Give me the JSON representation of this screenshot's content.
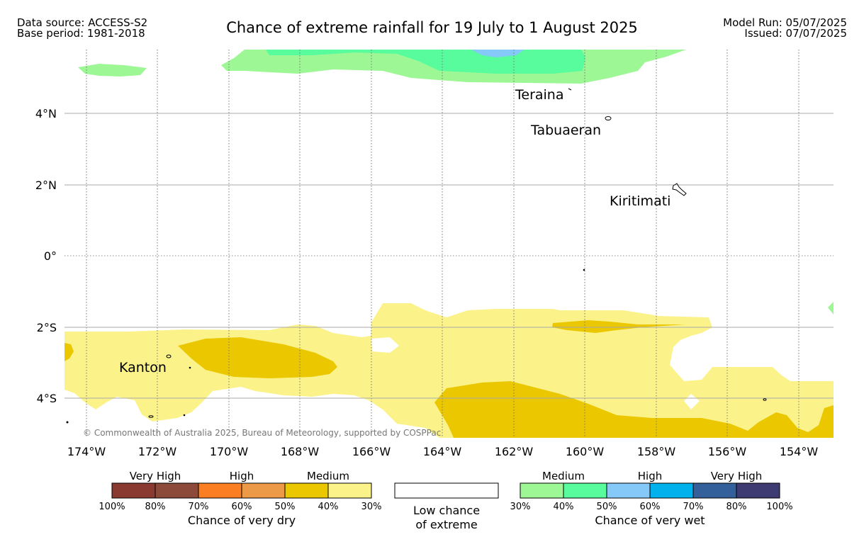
{
  "header": {
    "source_line": "Data source: ACCESS-S2",
    "base_line": "Base period: 1981-2018",
    "title": "Chance of extreme rainfall for 19 July to 1 August 2025",
    "model_run": "Model Run: 05/07/2025",
    "issued": "Issued: 07/07/2025"
  },
  "map": {
    "lon_labels": [
      "174°W",
      "172°W",
      "170°W",
      "168°W",
      "166°W",
      "164°W",
      "162°W",
      "160°W",
      "158°W",
      "156°W",
      "154°W"
    ],
    "lat_labels": [
      "4°N",
      "2°N",
      "0°",
      "2°S",
      "4°S"
    ],
    "places": [
      "Teraina",
      "Tabuaeran",
      "Kiritimati",
      "Kanton"
    ],
    "copyright": "© Commonwealth of Australia 2025, Bureau of Meteorology, supported by COSPPac"
  },
  "legend": {
    "dry": {
      "categories": [
        "Very High",
        "High",
        "Medium"
      ],
      "ticks": [
        "100%",
        "80%",
        "70%",
        "60%",
        "50%",
        "40%",
        "30%"
      ],
      "colors": [
        "#8b3a32",
        "#8b4a3a",
        "#fc7e22",
        "#ed9a48",
        "#ebc700",
        "#fbf38a"
      ],
      "caption": "Chance of very dry"
    },
    "low": {
      "line1": "Low chance",
      "line2": "of extreme"
    },
    "wet": {
      "categories": [
        "Medium",
        "High",
        "Very High"
      ],
      "ticks": [
        "30%",
        "40%",
        "50%",
        "60%",
        "70%",
        "80%",
        "100%"
      ],
      "colors": [
        "#9cf794",
        "#58fc9c",
        "#84c9f7",
        "#00b1eb",
        "#33609a",
        "#3e3a72"
      ],
      "caption": "Chance of very wet"
    }
  }
}
